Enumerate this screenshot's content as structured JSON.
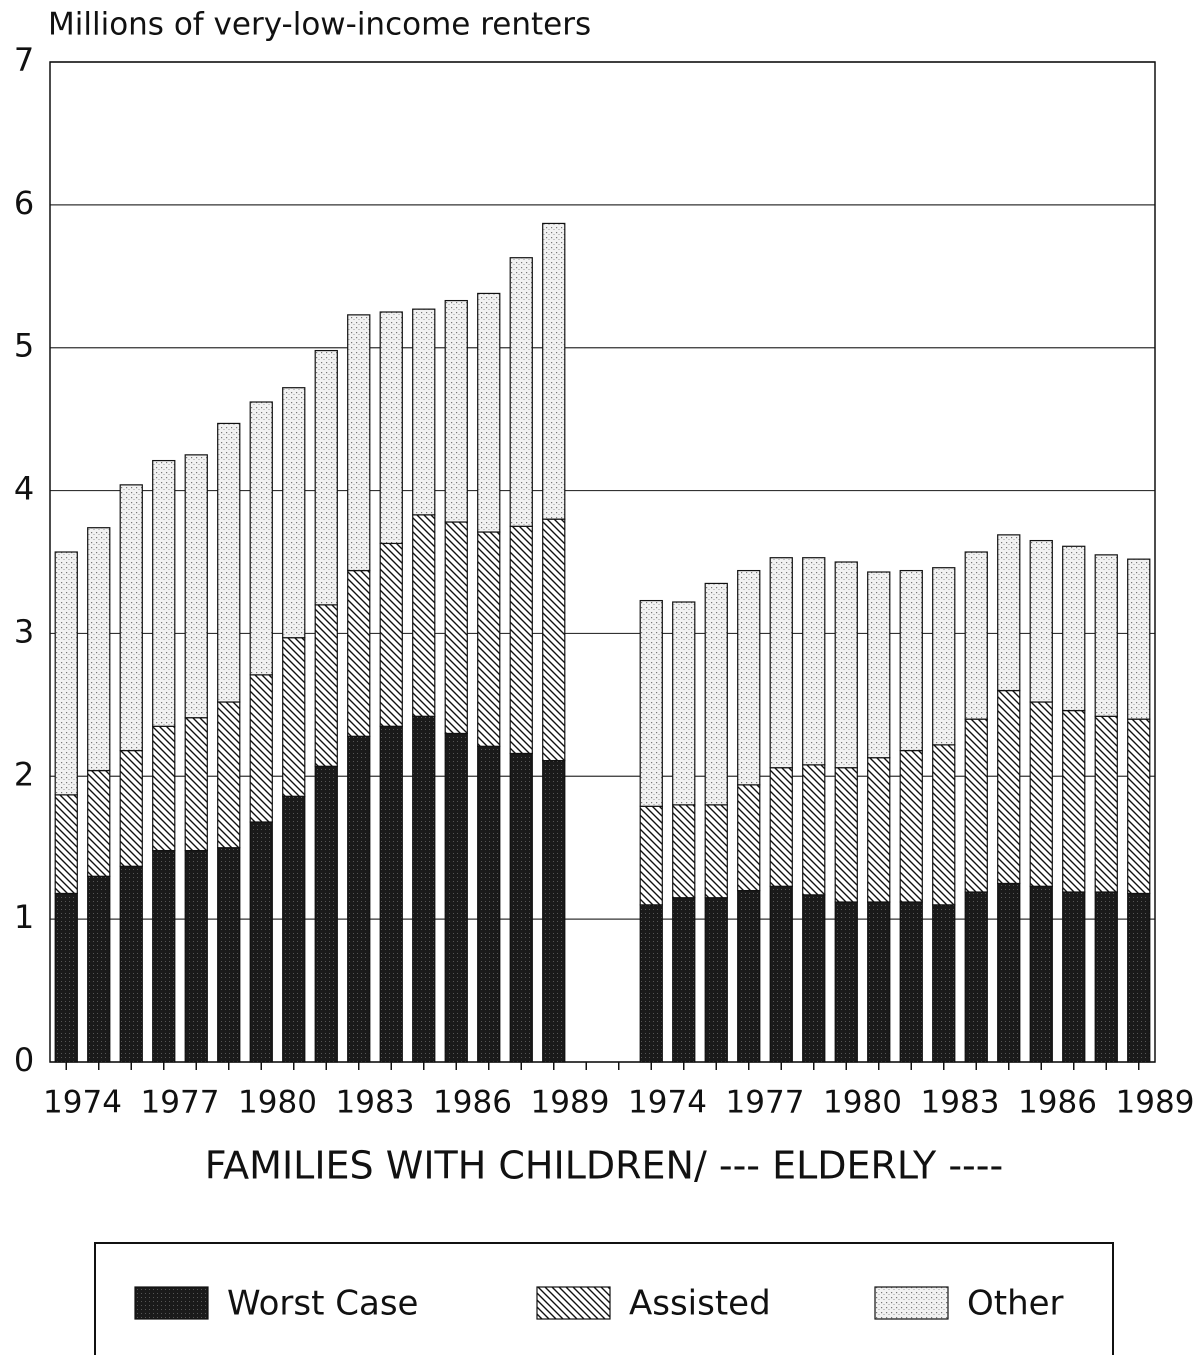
{
  "chart_data": {
    "type": "stacked_bar",
    "y_axis_label": "Millions of very-low-income renters",
    "x_axis_label": "FAMILIES WITH CHILDREN/ --- ELDERLY ----",
    "categories": [
      "1974",
      null,
      null,
      "1977",
      null,
      null,
      "1980",
      null,
      null,
      "1983",
      null,
      null,
      "1986",
      null,
      null,
      "1989",
      null,
      null,
      "1974",
      null,
      null,
      "1977",
      null,
      null,
      "1980",
      null,
      null,
      "1983",
      null,
      null,
      "1986",
      null,
      null,
      "1989"
    ],
    "series": [
      {
        "name": "Worst Case",
        "color": "#1a1a1a",
        "values": [
          1.18,
          1.3,
          1.37,
          1.48,
          1.48,
          1.5,
          1.68,
          1.86,
          2.07,
          2.28,
          2.35,
          2.42,
          2.3,
          2.21,
          2.16,
          2.11,
          null,
          null,
          1.1,
          1.15,
          1.15,
          1.2,
          1.23,
          1.17,
          1.12,
          1.12,
          1.12,
          1.1,
          1.19,
          1.25,
          1.23,
          1.19,
          1.19,
          1.18
        ]
      },
      {
        "name": "Assisted",
        "color": "#ffffff",
        "values": [
          0.69,
          0.74,
          0.81,
          0.87,
          0.93,
          1.02,
          1.03,
          1.11,
          1.13,
          1.16,
          1.28,
          1.41,
          1.48,
          1.5,
          1.59,
          1.69,
          null,
          null,
          0.69,
          0.65,
          0.65,
          0.74,
          0.83,
          0.91,
          0.94,
          1.01,
          1.06,
          1.12,
          1.21,
          1.35,
          1.29,
          1.27,
          1.23,
          1.22
        ]
      },
      {
        "name": "Other",
        "color": "#f2f2f2",
        "values": [
          1.7,
          1.7,
          1.86,
          1.86,
          1.84,
          1.95,
          1.91,
          1.75,
          1.78,
          1.79,
          1.62,
          1.44,
          1.55,
          1.67,
          1.88,
          2.07,
          null,
          null,
          1.44,
          1.42,
          1.55,
          1.5,
          1.47,
          1.45,
          1.44,
          1.3,
          1.26,
          1.24,
          1.17,
          1.09,
          1.13,
          1.15,
          1.13,
          1.12
        ]
      }
    ],
    "ylim": [
      0,
      7
    ],
    "yticks": [
      0,
      1,
      2,
      3,
      4,
      5,
      6,
      7
    ],
    "grid": true,
    "legend": "bottom"
  }
}
